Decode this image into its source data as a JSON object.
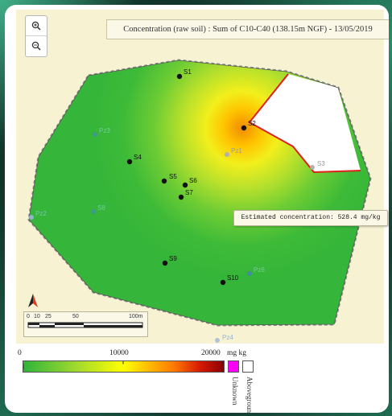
{
  "map": {
    "title": "Concentration (raw soil) : Sum of C10-C40 (138.15m NGF) - 13/05/2019",
    "tooltip": "Estimated concentration: 528.4 mg/kg",
    "zoom_in_icon": "zoom-in-icon",
    "zoom_out_icon": "zoom-out-icon",
    "north_icon": "north-arrow-icon",
    "samples": [
      {
        "id": "s1",
        "label": "S1"
      },
      {
        "id": "s2",
        "label": "S2"
      },
      {
        "id": "s4",
        "label": "S4"
      },
      {
        "id": "s5",
        "label": "S5"
      },
      {
        "id": "s6",
        "label": "S6"
      },
      {
        "id": "s7",
        "label": "S7"
      },
      {
        "id": "s9",
        "label": "S9"
      },
      {
        "id": "s10",
        "label": "S10"
      }
    ],
    "grey_points": [
      {
        "id": "pz1",
        "label": "Pz1"
      },
      {
        "id": "s3",
        "label": "S3"
      }
    ],
    "piezometers": [
      {
        "id": "pz3",
        "label": "Pz3"
      },
      {
        "id": "pz2",
        "label": "Pz2"
      },
      {
        "id": "s8",
        "label": "S8"
      },
      {
        "id": "pz6",
        "label": "Pz6"
      }
    ],
    "pz4_label": "Pz4"
  },
  "scale": {
    "labels": [
      "0",
      "10",
      "25",
      "50",
      "100m"
    ]
  },
  "legend": {
    "min": "0",
    "mid": "10000",
    "max": "20000",
    "unit": "mg kg",
    "unknown_label": "Unknown",
    "aboveground_label": "Aboveground",
    "colors": {
      "low": "#2fb43a",
      "mid": "#ffff00",
      "high": "#8b0000",
      "unknown": "#ff00ff",
      "aboveground": "#ffffff"
    }
  }
}
